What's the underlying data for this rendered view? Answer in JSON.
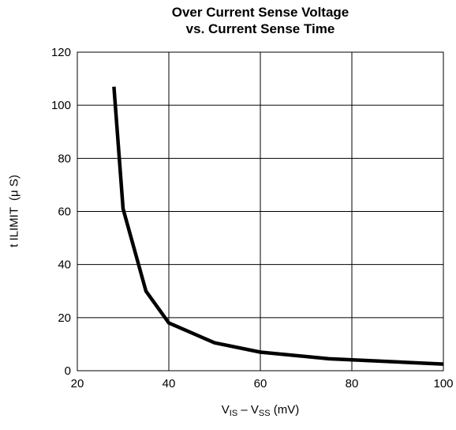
{
  "chart_data": {
    "type": "line",
    "title_line1": "Over Current Sense Voltage",
    "title_line2": "vs. Current Sense Time",
    "ylabel": "t ILIMIT  (μ S)",
    "xlabel": {
      "v1": "V",
      "sub1": "IS",
      "mid": " – V",
      "sub2": "SS",
      "unit": " (mV)"
    },
    "xlim": [
      20,
      100
    ],
    "ylim": [
      0,
      120
    ],
    "xticks": [
      20,
      40,
      60,
      80,
      100
    ],
    "yticks": [
      0,
      20,
      40,
      60,
      80,
      100,
      120
    ],
    "grid": true,
    "series": [
      {
        "color": "#000000",
        "x": [
          28,
          30,
          35,
          40,
          50,
          60,
          75,
          100
        ],
        "y": [
          107,
          61,
          30,
          18,
          10.5,
          7,
          4.5,
          2.5
        ]
      }
    ]
  }
}
